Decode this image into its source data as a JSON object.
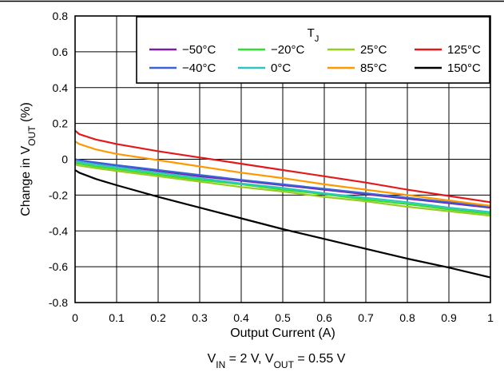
{
  "chart_data": {
    "type": "line",
    "title": "",
    "caption": {
      "parts": [
        {
          "text": "V",
          "sub": false
        },
        {
          "text": "IN",
          "sub": true
        },
        {
          "text": " = 2 V, V",
          "sub": false
        },
        {
          "text": "OUT",
          "sub": true
        },
        {
          "text": " = 0.55 V",
          "sub": false
        }
      ]
    },
    "xlabel": "Output Current (A)",
    "ylabel": {
      "parts": [
        {
          "text": "Change in V",
          "sub": false
        },
        {
          "text": "OUT",
          "sub": true
        },
        {
          "text": " (%)",
          "sub": false
        }
      ]
    },
    "xlim": [
      0,
      1
    ],
    "ylim": [
      -0.8,
      0.8
    ],
    "x_ticks": [
      0,
      0.1,
      0.2,
      0.3,
      0.4,
      0.5,
      0.6,
      0.7,
      0.8,
      0.9,
      1
    ],
    "x_tick_labels": [
      "0",
      "0.1",
      "0.2",
      "0.3",
      "0.4",
      "0.5",
      "0.6",
      "0.7",
      "0.8",
      "0.9",
      "1"
    ],
    "y_ticks": [
      -0.8,
      -0.6,
      -0.4,
      -0.2,
      0,
      0.2,
      0.4,
      0.6,
      0.8
    ],
    "y_tick_labels": [
      "-0.8",
      "-0.6",
      "-0.4",
      "-0.2",
      "0",
      "0.2",
      "0.4",
      "0.6",
      "0.8"
    ],
    "grid": true,
    "legend": {
      "title": {
        "parts": [
          {
            "text": "T",
            "sub": false
          },
          {
            "text": "J",
            "sub": true
          }
        ]
      },
      "placement": "top-right",
      "columns": 4
    },
    "x": [
      0,
      0.01,
      0.05,
      0.1,
      0.2,
      0.3,
      0.4,
      0.5,
      0.6,
      0.7,
      0.8,
      0.9,
      1.0
    ],
    "series": [
      {
        "name": "−50°C",
        "color": "#7b1fa2",
        "values": [
          0.0,
          -0.005,
          -0.02,
          -0.035,
          -0.065,
          -0.095,
          -0.12,
          -0.145,
          -0.17,
          -0.195,
          -0.22,
          -0.245,
          -0.27
        ]
      },
      {
        "name": "−20°C",
        "color": "#33dd33",
        "values": [
          -0.02,
          -0.025,
          -0.04,
          -0.055,
          -0.085,
          -0.115,
          -0.14,
          -0.17,
          -0.195,
          -0.225,
          -0.25,
          -0.28,
          -0.305
        ]
      },
      {
        "name": "25°C",
        "color": "#99cc22",
        "values": [
          -0.03,
          -0.035,
          -0.05,
          -0.065,
          -0.095,
          -0.125,
          -0.155,
          -0.18,
          -0.21,
          -0.235,
          -0.265,
          -0.29,
          -0.315
        ]
      },
      {
        "name": "125°C",
        "color": "#e31a1c",
        "values": [
          0.16,
          0.14,
          0.11,
          0.085,
          0.045,
          0.01,
          -0.025,
          -0.06,
          -0.095,
          -0.13,
          -0.17,
          -0.205,
          -0.24
        ]
      },
      {
        "name": "−40°C",
        "color": "#3b63d9",
        "values": [
          0.0,
          -0.005,
          -0.018,
          -0.033,
          -0.06,
          -0.088,
          -0.115,
          -0.14,
          -0.165,
          -0.19,
          -0.215,
          -0.24,
          -0.265
        ]
      },
      {
        "name": "0°C",
        "color": "#2ec4c4",
        "values": [
          -0.01,
          -0.015,
          -0.03,
          -0.045,
          -0.075,
          -0.105,
          -0.135,
          -0.16,
          -0.19,
          -0.215,
          -0.24,
          -0.27,
          -0.295
        ]
      },
      {
        "name": "85°C",
        "color": "#ff9900",
        "values": [
          0.1,
          0.085,
          0.055,
          0.03,
          -0.005,
          -0.04,
          -0.075,
          -0.105,
          -0.14,
          -0.17,
          -0.2,
          -0.23,
          -0.26
        ]
      },
      {
        "name": "150°C",
        "color": "#000000",
        "values": [
          -0.06,
          -0.075,
          -0.11,
          -0.145,
          -0.21,
          -0.27,
          -0.33,
          -0.39,
          -0.445,
          -0.5,
          -0.555,
          -0.605,
          -0.66
        ]
      }
    ]
  }
}
